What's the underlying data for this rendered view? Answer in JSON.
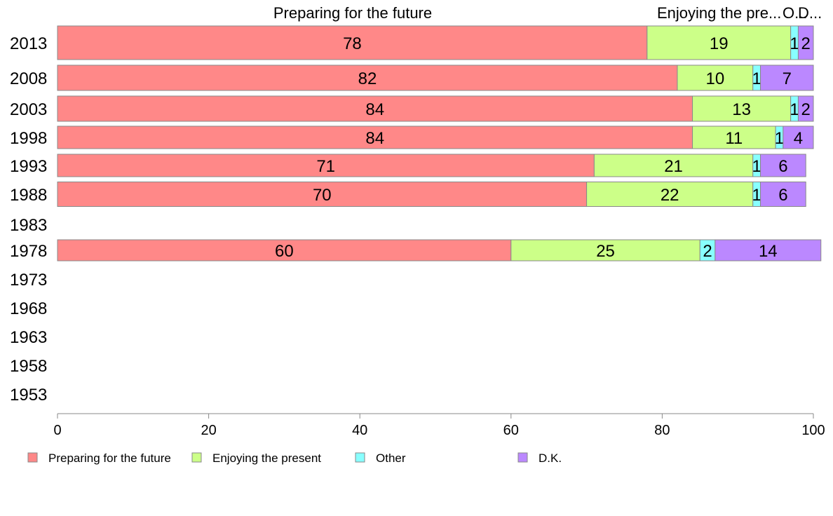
{
  "chart_data": {
    "type": "bar",
    "orientation": "horizontal",
    "stacked": true,
    "categories": [
      "2013",
      "2008",
      "2003",
      "1998",
      "1993",
      "1988",
      "1983",
      "1978",
      "1973",
      "1968",
      "1963",
      "1958",
      "1953"
    ],
    "series": [
      {
        "name": "Preparing for the future",
        "values": [
          78,
          82,
          84,
          84,
          71,
          70,
          null,
          60,
          null,
          null,
          null,
          null,
          null
        ]
      },
      {
        "name": "Enjoying the present",
        "values": [
          19,
          10,
          13,
          11,
          21,
          22,
          null,
          25,
          null,
          null,
          null,
          null,
          null
        ]
      },
      {
        "name": "Other",
        "values": [
          1,
          1,
          1,
          1,
          1,
          1,
          null,
          2,
          null,
          null,
          null,
          null,
          null
        ]
      },
      {
        "name": "D.K.",
        "values": [
          2,
          7,
          2,
          4,
          6,
          6,
          null,
          14,
          null,
          null,
          null,
          null,
          null
        ]
      }
    ],
    "column_headers": [
      "Preparing for the future",
      "Enjoying the pre...",
      "O...",
      "D..."
    ],
    "xlim": [
      0,
      100
    ],
    "xticks": [
      0,
      20,
      40,
      60,
      80,
      100
    ],
    "legend_position": "bottom-left",
    "colors": {
      "Preparing for the future": "#ff8888",
      "Enjoying the present": "#ccff88",
      "Other": "#88ffff",
      "D.K.": "#bb88ff"
    },
    "grid": false
  }
}
